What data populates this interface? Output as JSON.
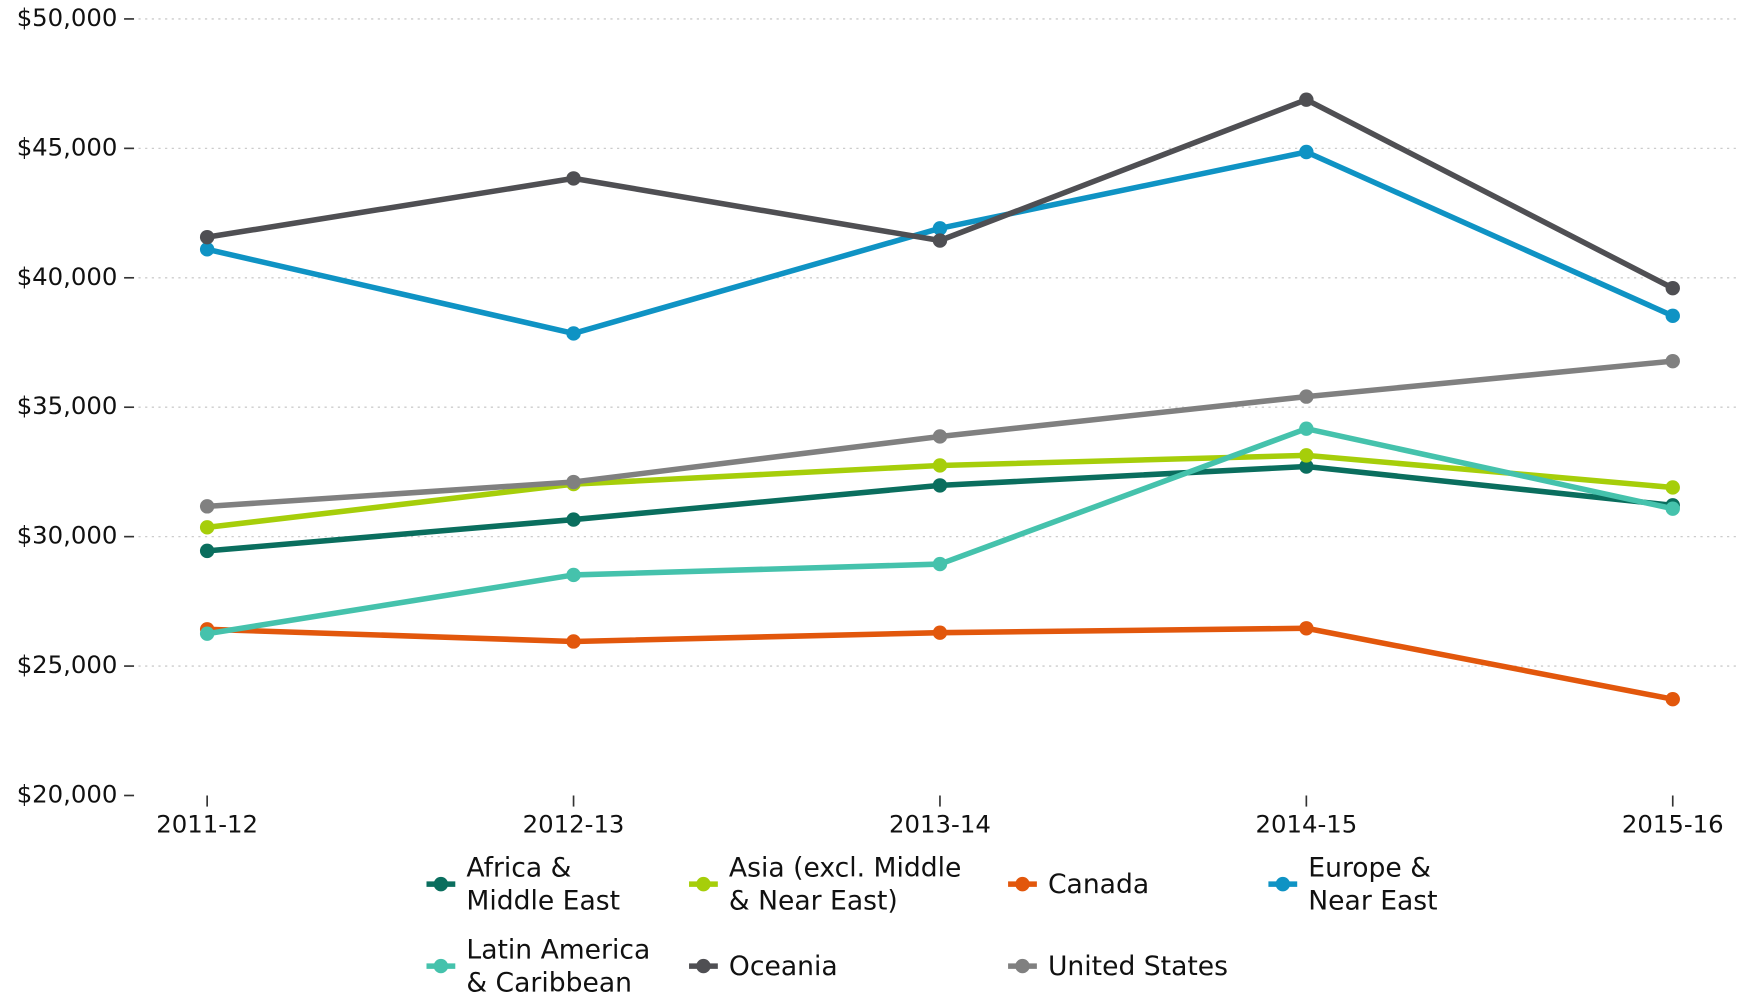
{
  "chart_data": {
    "type": "line",
    "categories": [
      "2011-12",
      "2012-13",
      "2013-14",
      "2014-15",
      "2015-16"
    ],
    "series": [
      {
        "name": "Africa & Middle East",
        "color": "#0a6e5e",
        "values": [
          29450,
          30660,
          31980,
          32710,
          31210
        ]
      },
      {
        "name": "Asia (excl. Middle & Near East)",
        "color": "#a6ce0a",
        "values": [
          30360,
          32030,
          32750,
          33140,
          31900
        ]
      },
      {
        "name": "Canada",
        "color": "#e2570c",
        "values": [
          26420,
          25950,
          26290,
          26460,
          23720
        ]
      },
      {
        "name": "Europe & Near East",
        "color": "#0f93c4",
        "values": [
          41100,
          37850,
          41910,
          44860,
          38530
        ]
      },
      {
        "name": "Latin America & Caribbean",
        "color": "#45c2ac",
        "values": [
          26250,
          28520,
          28940,
          34170,
          31080
        ]
      },
      {
        "name": "Oceania",
        "color": "#4f4f53",
        "values": [
          41570,
          43840,
          41440,
          46880,
          39600
        ]
      },
      {
        "name": "United States",
        "color": "#808080",
        "values": [
          31170,
          32110,
          33870,
          35410,
          36780
        ]
      }
    ],
    "ylim": [
      20000,
      50000
    ],
    "yticks": [
      {
        "value": 20000,
        "label": "$20,000"
      },
      {
        "value": 25000,
        "label": "$25,000"
      },
      {
        "value": 30000,
        "label": "$30,000"
      },
      {
        "value": 35000,
        "label": "$35,000"
      },
      {
        "value": 40000,
        "label": "$40,000"
      },
      {
        "value": 45000,
        "label": "$45,000"
      },
      {
        "value": 50000,
        "label": "$50,000"
      }
    ],
    "grid": true
  }
}
